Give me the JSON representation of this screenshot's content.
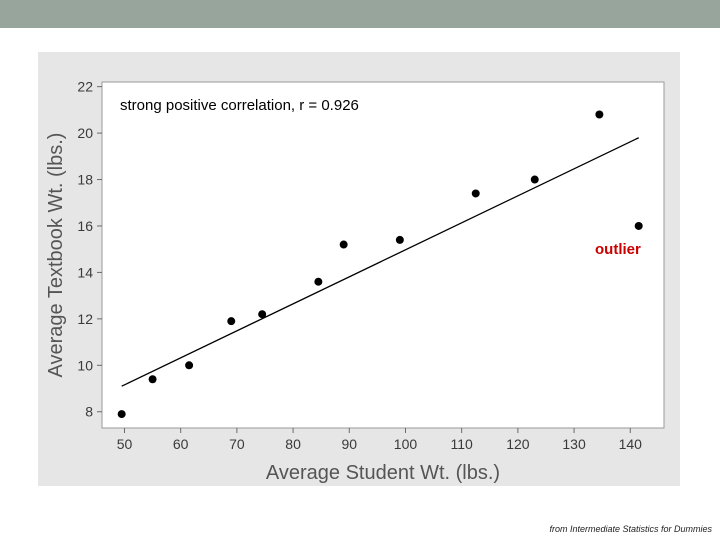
{
  "chart_data": {
    "type": "scatter",
    "xlabel": "Average Student Wt. (lbs.)",
    "ylabel": "Average Textbook Wt. (lbs.)",
    "xlim": [
      46,
      146
    ],
    "ylim": [
      7.3,
      22.2
    ],
    "xticks": [
      50,
      60,
      70,
      80,
      90,
      100,
      110,
      120,
      130,
      140
    ],
    "yticks": [
      8,
      10,
      12,
      14,
      16,
      18,
      20,
      22
    ],
    "points": [
      {
        "x": 49.5,
        "y": 7.9
      },
      {
        "x": 55,
        "y": 9.4
      },
      {
        "x": 61.5,
        "y": 10.0
      },
      {
        "x": 69,
        "y": 11.9
      },
      {
        "x": 74.5,
        "y": 12.2
      },
      {
        "x": 84.5,
        "y": 13.6
      },
      {
        "x": 89,
        "y": 15.2
      },
      {
        "x": 99,
        "y": 15.4
      },
      {
        "x": 112.5,
        "y": 17.4
      },
      {
        "x": 123,
        "y": 18.0
      },
      {
        "x": 134.5,
        "y": 20.8
      },
      {
        "x": 141.5,
        "y": 16.0
      }
    ],
    "fit_line": {
      "x": [
        49.5,
        141.5
      ],
      "y": [
        9.1,
        19.8
      ]
    },
    "annotations": [
      {
        "text": "strong positive correlation, r = 0.926",
        "color": "#000000"
      },
      {
        "text": "outlier",
        "color": "#cc0000"
      }
    ],
    "grid": false,
    "legend": "none"
  },
  "footer": {
    "source": "from Intermediate Statistics for Dummies"
  },
  "colors": {
    "top_bar": "#97a59d",
    "frame": "#e6e6e6",
    "plot_bg": "#ffffff",
    "points": "#000000",
    "outlier_label": "#cc0000"
  }
}
